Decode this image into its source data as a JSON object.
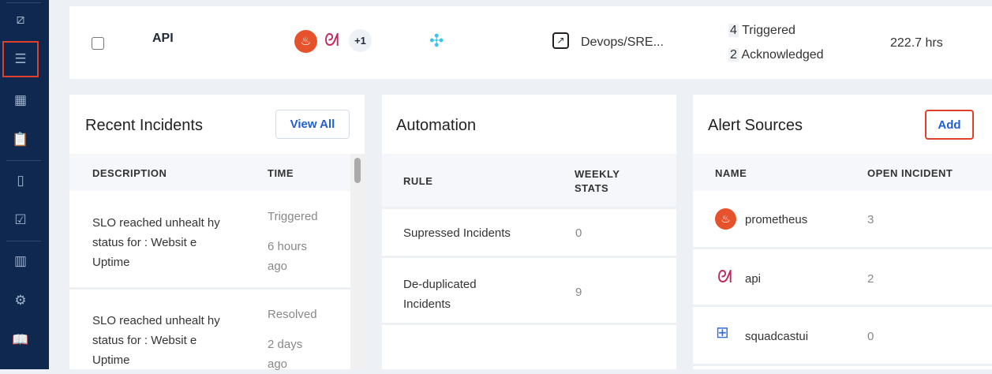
{
  "sidebar": {
    "icons": [
      "analytics-icon",
      "services-icon",
      "calendar-icon",
      "clipboard-icon",
      "clipboard-alert-icon",
      "clipboard-check-icon",
      "reports-icon",
      "settings-icon",
      "book-icon"
    ],
    "active": "services-icon"
  },
  "service_row": {
    "name": "API",
    "alert_sources_more": "+1",
    "team": "Devops/SRE...",
    "triggered_count": "4",
    "triggered_label": "Triggered",
    "ack_count": "2",
    "ack_label": "Acknowledged",
    "mttr": "222.7 hrs"
  },
  "recent_incidents": {
    "title": "Recent Incidents",
    "view_all": "View All",
    "col_description": "DESCRIPTION",
    "col_time": "TIME",
    "rows": [
      {
        "description": "SLO reached unhealt hy status for : Websit e Uptime",
        "status": "Triggered",
        "time": "6 hours ago"
      },
      {
        "description": "SLO reached unhealt hy status for : Websit e Uptime",
        "status": "Resolved",
        "time": "2 days ago"
      }
    ]
  },
  "automation": {
    "title": "Automation",
    "col_rule": "RULE",
    "col_stats": "WEEKLY STATS",
    "rows": [
      {
        "rule": "Supressed Incidents",
        "value": "0"
      },
      {
        "rule": "De-duplicated Incidents",
        "value": "9"
      }
    ]
  },
  "alert_sources": {
    "title": "Alert Sources",
    "add": "Add",
    "col_name": "NAME",
    "col_open": "OPEN INCIDENT",
    "rows": [
      {
        "name": "prometheus",
        "icon": "prometheus-icon",
        "open": "3"
      },
      {
        "name": "api",
        "icon": "api-icon",
        "open": "2"
      },
      {
        "name": "squadcastui",
        "icon": "squadcast-icon",
        "open": "0"
      }
    ]
  },
  "colors": {
    "sidebar": "#0f2850",
    "accent": "#1e5fd1",
    "highlight": "#e0402b",
    "prometheus": "#e6522c"
  }
}
